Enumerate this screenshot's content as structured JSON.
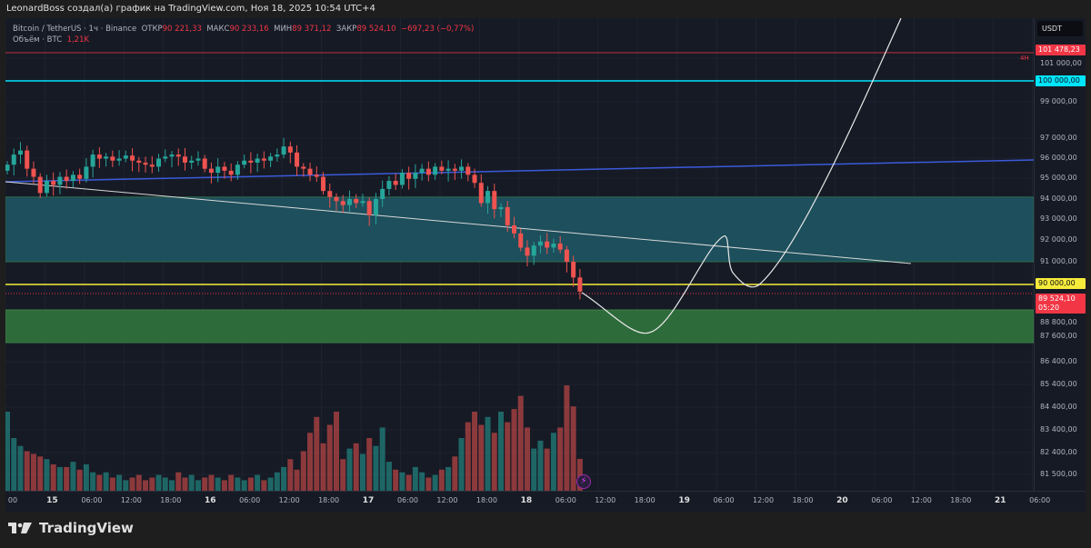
{
  "header": {
    "author_line": "LeonardBoss создал(а) график на TradingView.com, Ноя 18, 2025 10:54 UTC+4"
  },
  "legend": {
    "symbol": "Bitcoin / TetherUS · 1ч · Binance",
    "open_label": "ОТКР",
    "open": "90 221,33",
    "high_label": "МАКС",
    "high": "90 233,16",
    "low_label": "МИН",
    "low": "89 371,12",
    "close_label": "ЗАКР",
    "close": "89 524,10",
    "change": "−697,23 (−0,77%)",
    "volume_label": "Объём · BTC",
    "volume": "1,21K"
  },
  "price_axis": {
    "currency": "USDT",
    "labels": [
      "101 000,00",
      "99 000,00",
      "97 000,00",
      "96 000,00",
      "95 000,00",
      "94 000,00",
      "93 000,00",
      "92 000,00",
      "91 000,00",
      "88 800,00",
      "87 600,00",
      "86 400,00",
      "85 400,00",
      "84 400,00",
      "83 400,00",
      "82 400,00",
      "81 500,00"
    ],
    "tags": {
      "red_level": "101 478,23",
      "cyan_level": "100 000,00",
      "yellow_level": "90 000,00",
      "current_price": "89 524,10",
      "countdown": "05:20"
    },
    "interval_badge": "4H"
  },
  "time_axis": {
    "labels": [
      "00",
      "15",
      "06:00",
      "12:00",
      "18:00",
      "16",
      "06:00",
      "12:00",
      "18:00",
      "17",
      "06:00",
      "12:00",
      "18:00",
      "18",
      "06:00",
      "12:00",
      "18:00",
      "19",
      "06:00",
      "12:00",
      "18:00",
      "20",
      "06:00",
      "12:00",
      "18:00",
      "21",
      "06:00"
    ]
  },
  "colors": {
    "up": "#26a69a",
    "down": "#ef5350",
    "blue_line": "#3b5bdb",
    "cyan": "#00e5ff",
    "yellow": "#f5eb3b",
    "zone_teal": "#1d4f5c",
    "zone_green": "#2e6b3a"
  },
  "footer": {
    "brand": "TradingView"
  },
  "chart_data": {
    "type": "candlestick",
    "interval": "1h",
    "symbol": "BTCUSDT",
    "closes": [
      95800,
      96300,
      96500,
      95600,
      95200,
      94400,
      95000,
      94800,
      95200,
      95000,
      95300,
      95100,
      95700,
      96300,
      96100,
      96200,
      96000,
      96100,
      96250,
      96000,
      95900,
      95800,
      95700,
      96100,
      96200,
      96300,
      96200,
      95900,
      96000,
      96100,
      95600,
      95400,
      95700,
      95500,
      95300,
      95800,
      96000,
      95900,
      96100,
      96000,
      96200,
      96300,
      96700,
      96400,
      95700,
      95600,
      95300,
      95200,
      94500,
      94200,
      94000,
      93800,
      94100,
      93900,
      94000,
      93300,
      94100,
      94600,
      95000,
      94800,
      95400,
      95100,
      95400,
      95600,
      95300,
      95700,
      95500,
      95600,
      95500,
      95700,
      95300,
      94900,
      93900,
      94500,
      93600,
      93700,
      92800,
      92400,
      91700,
      91300,
      91800,
      92000,
      91700,
      91900,
      91600,
      91000,
      90221,
      89524
    ],
    "volume_k": [
      3.0,
      2.0,
      1.7,
      1.5,
      1.4,
      1.3,
      1.2,
      1.0,
      0.9,
      0.9,
      1.1,
      0.8,
      1.0,
      0.7,
      0.6,
      0.7,
      0.5,
      0.6,
      0.4,
      0.5,
      0.6,
      0.4,
      0.5,
      0.6,
      0.5,
      0.4,
      0.7,
      0.5,
      0.6,
      0.4,
      0.5,
      0.6,
      0.5,
      0.4,
      0.6,
      0.5,
      0.4,
      0.5,
      0.6,
      0.4,
      0.5,
      0.7,
      0.9,
      1.2,
      0.8,
      1.5,
      2.2,
      2.8,
      1.8,
      2.5,
      3.0,
      1.2,
      1.6,
      1.8,
      1.4,
      2.0,
      1.7,
      2.4,
      1.1,
      0.8,
      0.7,
      0.6,
      0.9,
      0.7,
      0.5,
      0.6,
      0.8,
      0.9,
      1.3,
      2.0,
      2.6,
      3.0,
      2.5,
      2.8,
      2.2,
      3.0,
      2.6,
      3.1,
      3.6,
      2.4,
      1.6,
      1.9,
      1.6,
      2.2,
      2.4,
      4.0,
      3.2,
      1.21
    ],
    "horizontal_levels": [
      101478.23,
      100000,
      90000
    ],
    "zones": [
      [
        91000,
        94200
      ],
      [
        87400,
        88900
      ]
    ]
  }
}
